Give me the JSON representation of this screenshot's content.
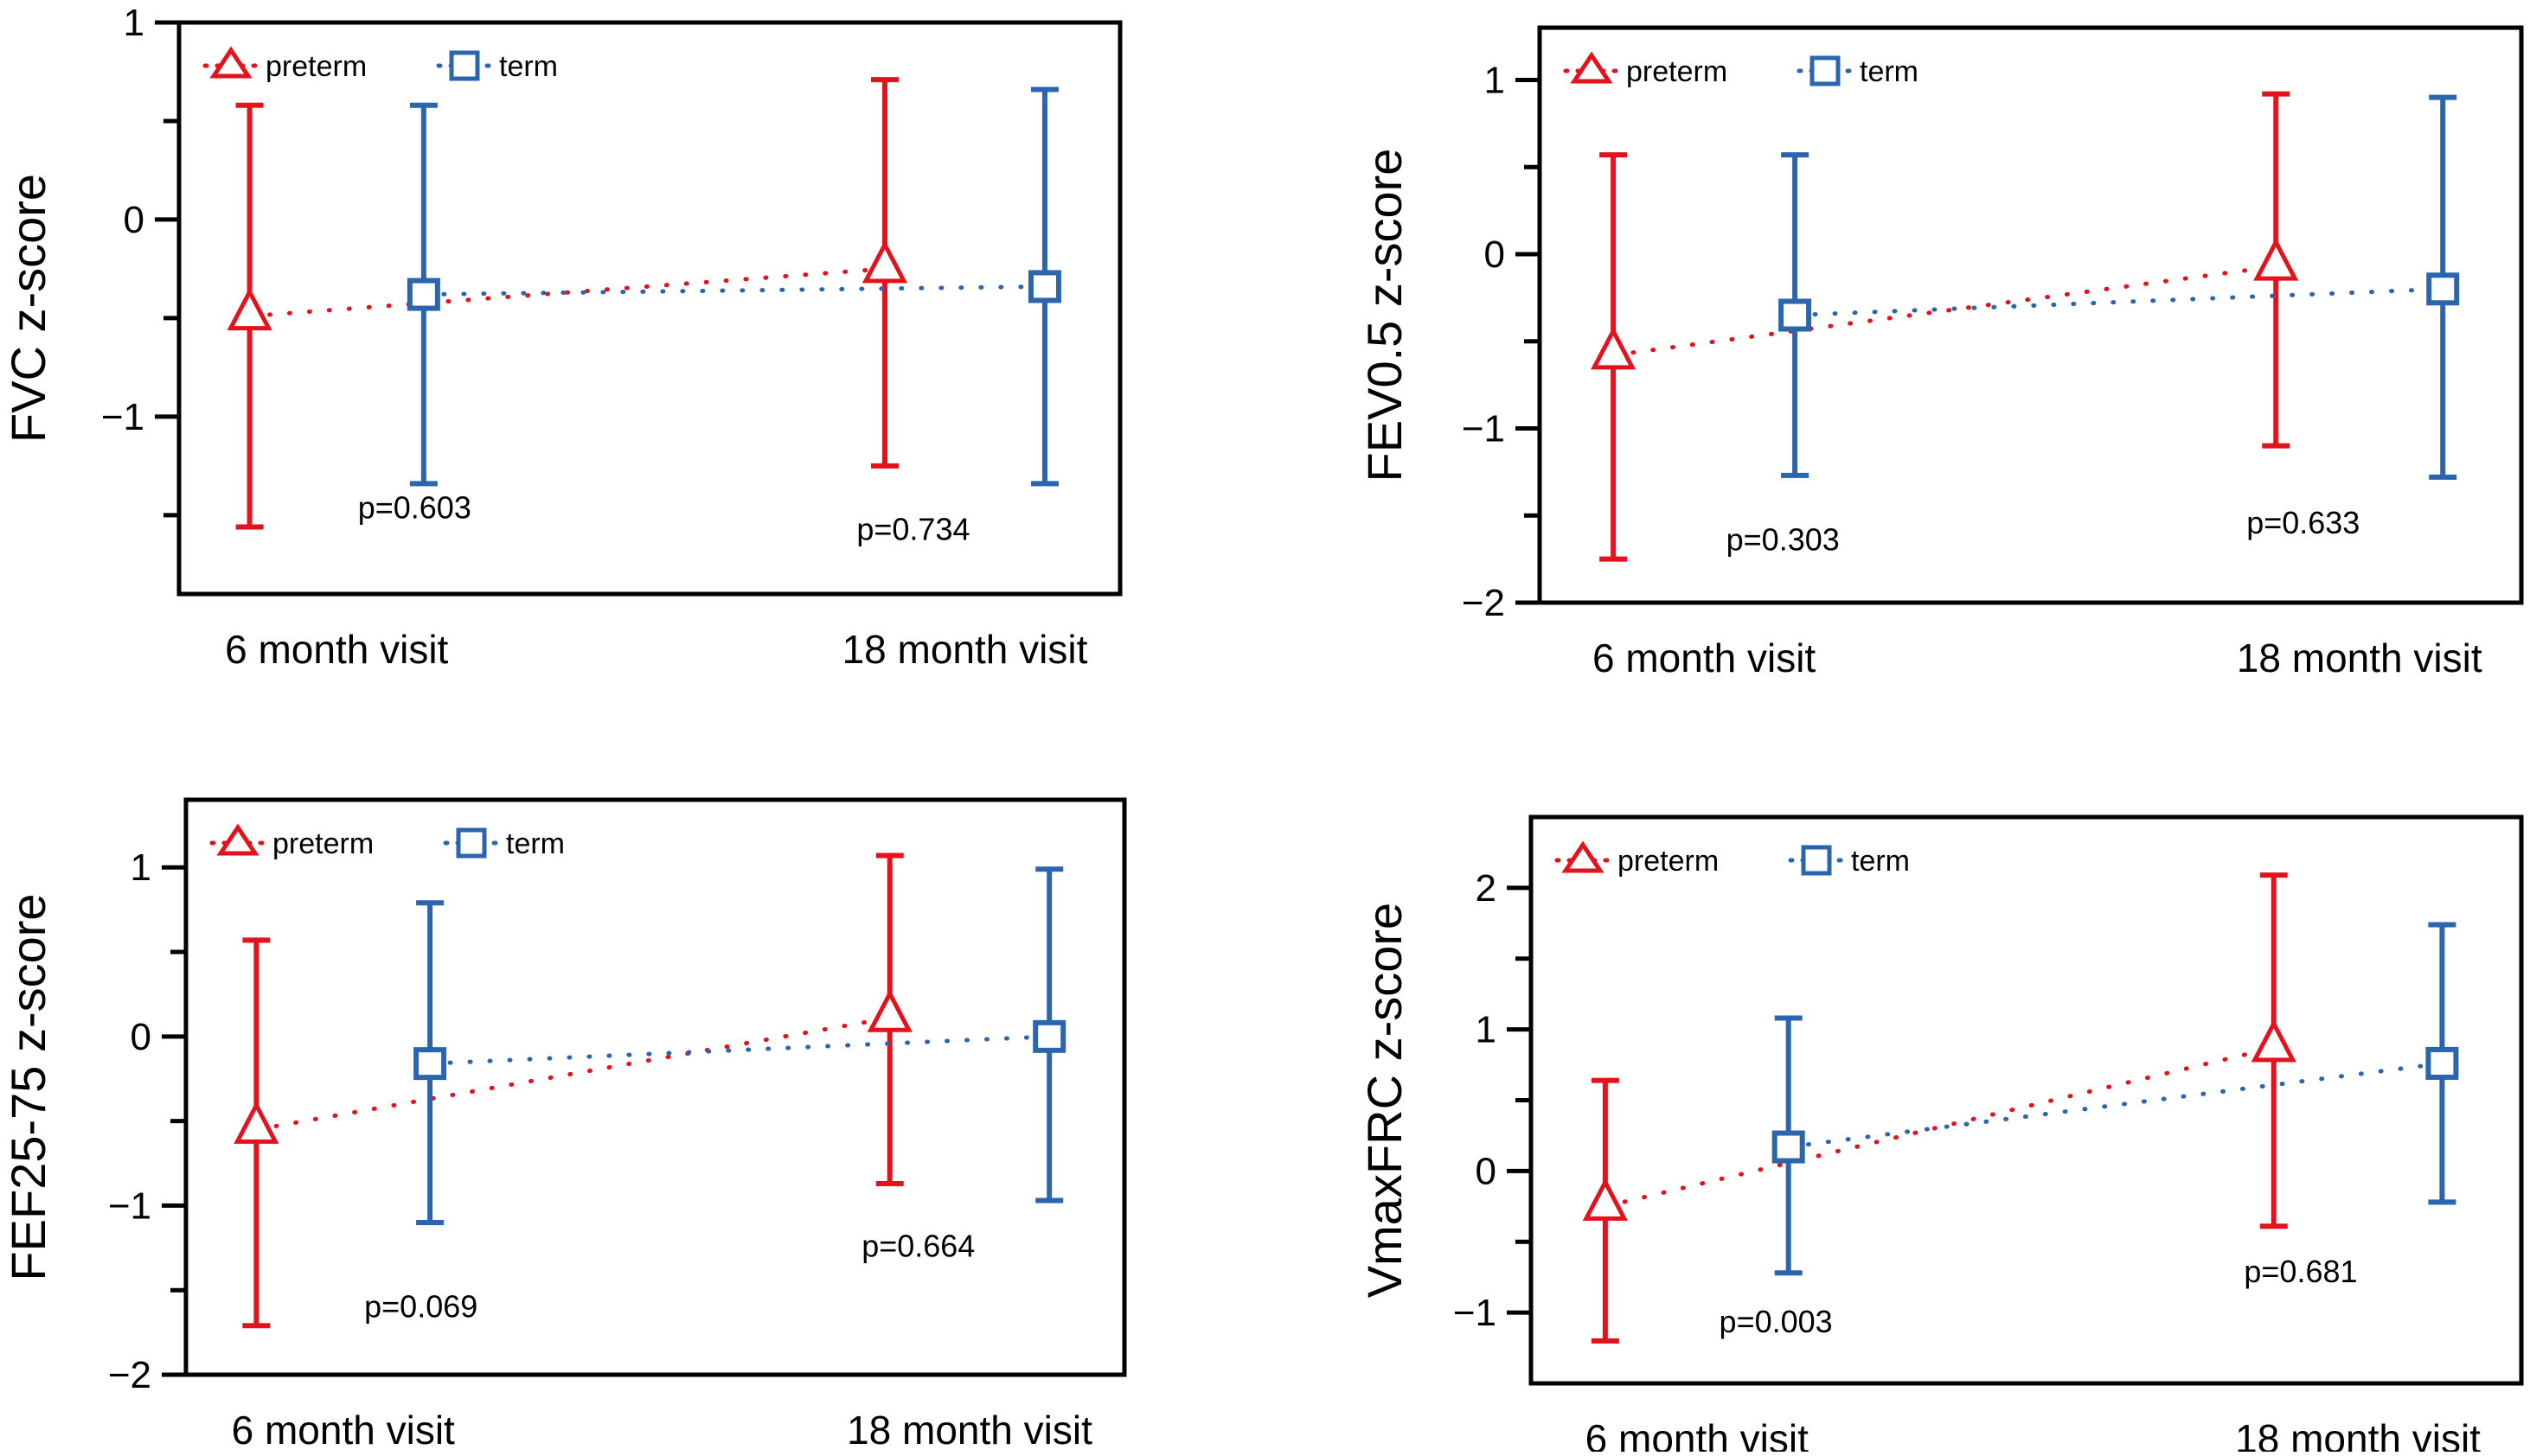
{
  "colors": {
    "preterm": "#e3121c",
    "term": "#2a65ad",
    "axis": "#000000"
  },
  "chart_data": [
    {
      "type": "errorbar",
      "title": "",
      "ylabel": "FVC z-score",
      "xlabel": "",
      "categories": [
        "6 month visit",
        "18 month visit"
      ],
      "ylim": [
        -1.9,
        1
      ],
      "yticks_major": [
        1,
        0,
        -1
      ],
      "yticks_minor": [
        0.5,
        -0.5,
        -1.5
      ],
      "legend": {
        "position": "top-left",
        "entries": [
          "preterm",
          "term"
        ]
      },
      "series": [
        {
          "name": "preterm",
          "marker": "triangle",
          "mean": [
            -0.49,
            -0.25
          ],
          "upper": [
            0.58,
            0.71
          ],
          "lower": [
            -1.56,
            -1.25
          ]
        },
        {
          "name": "term",
          "marker": "square",
          "mean": [
            -0.38,
            -0.34
          ],
          "upper": [
            0.58,
            0.66
          ],
          "lower": [
            -1.34,
            -1.34
          ]
        }
      ],
      "pvalues": [
        "p=0.603",
        "p=0.734"
      ]
    },
    {
      "type": "errorbar",
      "title": "",
      "ylabel": "FEV0.5 z-score",
      "xlabel": "",
      "categories": [
        "6 month visit",
        "18 month visit"
      ],
      "ylim": [
        -2,
        1.3
      ],
      "yticks_major": [
        1,
        0,
        -1,
        -2
      ],
      "yticks_minor": [
        0.5,
        -0.5,
        -1.5
      ],
      "legend": {
        "position": "top-left",
        "entries": [
          "preterm",
          "term"
        ]
      },
      "series": [
        {
          "name": "preterm",
          "marker": "triangle",
          "mean": [
            -0.58,
            -0.07
          ],
          "upper": [
            0.57,
            0.92
          ],
          "lower": [
            -1.75,
            -1.1
          ]
        },
        {
          "name": "term",
          "marker": "square",
          "mean": [
            -0.35,
            -0.2
          ],
          "upper": [
            0.57,
            0.9
          ],
          "lower": [
            -1.27,
            -1.28
          ]
        }
      ],
      "pvalues": [
        "p=0.303",
        "p=0.633"
      ]
    },
    {
      "type": "errorbar",
      "title": "",
      "ylabel": "FEF25-75 z-score",
      "xlabel": "",
      "categories": [
        "6 month visit",
        "18 month visit"
      ],
      "ylim": [
        -2,
        1.4
      ],
      "yticks_major": [
        1,
        0,
        -1,
        -2
      ],
      "yticks_minor": [
        0.5,
        -0.5,
        -1.5
      ],
      "legend": {
        "position": "top-left",
        "entries": [
          "preterm",
          "term"
        ]
      },
      "series": [
        {
          "name": "preterm",
          "marker": "triangle",
          "mean": [
            -0.55,
            0.11
          ],
          "upper": [
            0.57,
            1.07
          ],
          "lower": [
            -1.71,
            -0.87
          ]
        },
        {
          "name": "term",
          "marker": "square",
          "mean": [
            -0.16,
            0.0
          ],
          "upper": [
            0.79,
            0.99
          ],
          "lower": [
            -1.1,
            -0.97
          ]
        }
      ],
      "pvalues": [
        "p=0.069",
        "p=0.664"
      ]
    },
    {
      "type": "errorbar",
      "title": "",
      "ylabel": "VmaxFRC z-score",
      "xlabel": "",
      "categories": [
        "6 month visit",
        "18 month visit"
      ],
      "ylim": [
        -1.5,
        2.5
      ],
      "yticks_major": [
        2,
        1,
        0,
        -1
      ],
      "yticks_minor": [
        1.5,
        0.5,
        -0.5
      ],
      "legend": {
        "position": "top-left",
        "entries": [
          "preterm",
          "term"
        ]
      },
      "series": [
        {
          "name": "preterm",
          "marker": "triangle",
          "mean": [
            -0.25,
            0.87
          ],
          "upper": [
            0.64,
            2.09
          ],
          "lower": [
            -1.2,
            -0.39
          ]
        },
        {
          "name": "term",
          "marker": "square",
          "mean": [
            0.17,
            0.76
          ],
          "upper": [
            1.08,
            1.74
          ],
          "lower": [
            -0.72,
            -0.22
          ]
        }
      ],
      "pvalues": [
        "p=0.003",
        "p=0.681"
      ]
    }
  ]
}
